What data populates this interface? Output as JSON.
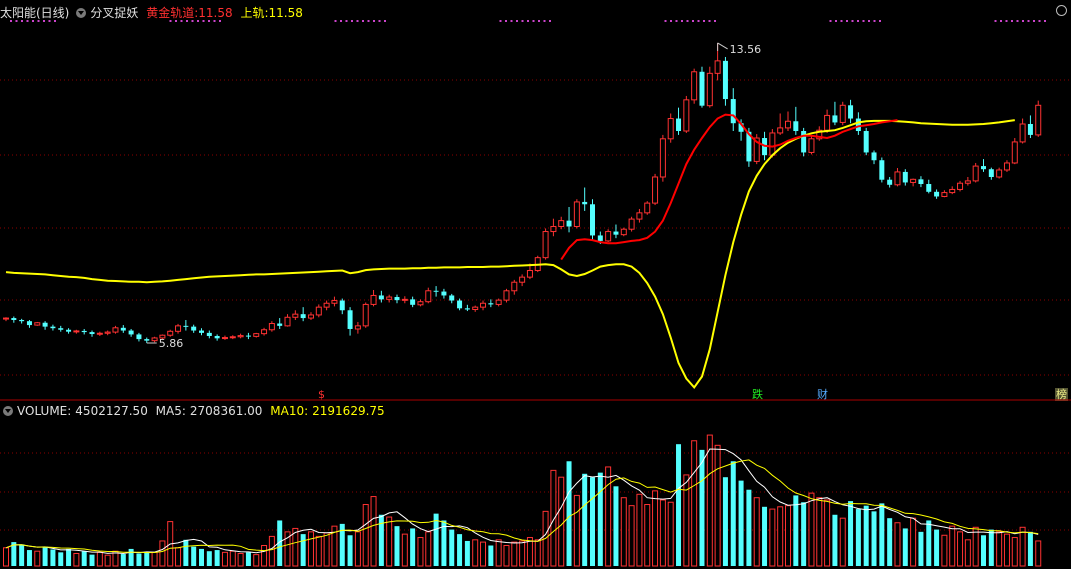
{
  "header": {
    "title": "太阳能(日线)",
    "indicator_name": "分叉捉妖",
    "line1_label": "黄金轨道:",
    "line1_value": "11.58",
    "line2_label": "上轨:",
    "line2_value": "11.58"
  },
  "volume_header": {
    "label": "VOLUME:",
    "value": "4502127.50",
    "ma5_label": "MA5:",
    "ma5_value": "2708361.00",
    "ma10_label": "MA10:",
    "ma10_value": "2191629.75"
  },
  "markers": {
    "dollar": "$",
    "die": "跌",
    "cai": "财",
    "bang": "榜"
  },
  "colors": {
    "up": "#ff3232",
    "down": "#54ffff",
    "gold_line": "#ffff00",
    "red_line": "#ff0000",
    "grid": "#8b0000"
  },
  "chart_data": {
    "type": "candlestick",
    "price_ylim": [
      4.5,
      14.2
    ],
    "high_label": "13.56",
    "low_label": "5.86",
    "high_value": 13.56,
    "low_value": 5.86,
    "candles": [
      [
        6.48,
        6.52,
        6.5,
        6.42
      ],
      [
        6.5,
        6.54,
        6.45,
        6.38
      ],
      [
        6.45,
        6.48,
        6.42,
        6.36
      ],
      [
        6.42,
        6.45,
        6.32,
        6.25
      ],
      [
        6.32,
        6.4,
        6.38,
        6.3
      ],
      [
        6.38,
        6.42,
        6.28,
        6.2
      ],
      [
        6.28,
        6.33,
        6.24,
        6.18
      ],
      [
        6.24,
        6.3,
        6.2,
        6.15
      ],
      [
        6.2,
        6.24,
        6.15,
        6.1
      ],
      [
        6.15,
        6.2,
        6.17,
        6.1
      ],
      [
        6.17,
        6.22,
        6.14,
        6.08
      ],
      [
        6.14,
        6.18,
        6.09,
        6.02
      ],
      [
        6.09,
        6.15,
        6.11,
        6.04
      ],
      [
        6.11,
        6.18,
        6.14,
        6.06
      ],
      [
        6.14,
        6.3,
        6.25,
        6.1
      ],
      [
        6.25,
        6.32,
        6.18,
        6.12
      ],
      [
        6.18,
        6.22,
        6.08,
        6.02
      ],
      [
        6.08,
        6.12,
        5.96,
        5.9
      ],
      [
        5.96,
        6.0,
        5.92,
        5.86
      ],
      [
        5.92,
        6.02,
        5.99,
        5.88
      ],
      [
        5.99,
        6.08,
        6.06,
        5.95
      ],
      [
        6.06,
        6.2,
        6.16,
        6.02
      ],
      [
        6.16,
        6.35,
        6.3,
        6.1
      ],
      [
        6.3,
        6.45,
        6.28,
        6.18
      ],
      [
        6.28,
        6.33,
        6.18,
        6.12
      ],
      [
        6.18,
        6.24,
        6.12,
        6.06
      ],
      [
        6.12,
        6.18,
        6.04,
        5.98
      ],
      [
        6.04,
        6.08,
        5.98,
        5.92
      ],
      [
        5.98,
        6.05,
        6.0,
        5.94
      ],
      [
        6.0,
        6.06,
        6.02,
        5.96
      ],
      [
        6.02,
        6.1,
        6.05,
        5.98
      ],
      [
        6.05,
        6.12,
        6.03,
        5.96
      ],
      [
        6.03,
        6.12,
        6.1,
        6.0
      ],
      [
        6.1,
        6.25,
        6.2,
        6.05
      ],
      [
        6.2,
        6.42,
        6.36,
        6.15
      ],
      [
        6.36,
        6.5,
        6.3,
        6.22
      ],
      [
        6.3,
        6.6,
        6.52,
        6.28
      ],
      [
        6.52,
        6.7,
        6.6,
        6.45
      ],
      [
        6.6,
        6.78,
        6.5,
        6.42
      ],
      [
        6.5,
        6.65,
        6.58,
        6.45
      ],
      [
        6.58,
        6.85,
        6.78,
        6.52
      ],
      [
        6.78,
        6.95,
        6.88,
        6.7
      ],
      [
        6.88,
        7.05,
        6.95,
        6.8
      ],
      [
        6.95,
        7.0,
        6.7,
        6.6
      ],
      [
        6.7,
        6.78,
        6.22,
        6.05
      ],
      [
        6.22,
        6.4,
        6.3,
        6.1
      ],
      [
        6.3,
        6.9,
        6.85,
        6.25
      ],
      [
        6.85,
        7.22,
        7.08,
        6.8
      ],
      [
        7.08,
        7.2,
        6.98,
        6.9
      ],
      [
        6.98,
        7.1,
        7.04,
        6.9
      ],
      [
        7.04,
        7.1,
        6.96,
        6.88
      ],
      [
        6.96,
        7.06,
        6.98,
        6.88
      ],
      [
        6.98,
        7.05,
        6.84,
        6.78
      ],
      [
        6.84,
        6.98,
        6.92,
        6.8
      ],
      [
        6.92,
        7.28,
        7.2,
        6.88
      ],
      [
        7.2,
        7.32,
        7.18,
        7.05
      ],
      [
        7.18,
        7.25,
        7.08,
        7.0
      ],
      [
        7.08,
        7.12,
        6.95,
        6.88
      ],
      [
        6.95,
        7.0,
        6.75,
        6.7
      ],
      [
        6.75,
        6.84,
        6.72,
        6.68
      ],
      [
        6.72,
        6.82,
        6.78,
        6.66
      ],
      [
        6.78,
        6.95,
        6.88,
        6.7
      ],
      [
        6.88,
        6.98,
        6.85,
        6.78
      ],
      [
        6.85,
        7.0,
        6.96,
        6.8
      ],
      [
        6.96,
        7.25,
        7.2,
        6.9
      ],
      [
        7.2,
        7.48,
        7.42,
        7.1
      ],
      [
        7.42,
        7.62,
        7.55,
        7.32
      ],
      [
        7.55,
        7.9,
        7.72,
        7.5
      ],
      [
        7.72,
        8.1,
        8.05,
        7.68
      ],
      [
        8.05,
        8.8,
        8.72,
        8.0
      ],
      [
        8.72,
        9.05,
        8.85,
        8.6
      ],
      [
        8.85,
        9.1,
        9.0,
        8.78
      ],
      [
        9.0,
        9.35,
        8.85,
        8.7
      ],
      [
        8.85,
        9.55,
        9.48,
        8.8
      ],
      [
        9.48,
        9.85,
        9.42,
        9.25
      ],
      [
        9.42,
        9.55,
        8.62,
        8.5
      ],
      [
        8.62,
        8.72,
        8.48,
        8.4
      ],
      [
        8.48,
        8.78,
        8.72,
        8.45
      ],
      [
        8.72,
        8.9,
        8.64,
        8.55
      ],
      [
        8.64,
        8.82,
        8.78,
        8.6
      ],
      [
        8.78,
        9.1,
        9.04,
        8.72
      ],
      [
        9.04,
        9.3,
        9.2,
        8.95
      ],
      [
        9.2,
        9.5,
        9.45,
        9.15
      ],
      [
        9.45,
        10.2,
        10.12,
        9.4
      ],
      [
        10.12,
        11.2,
        11.1,
        10.0
      ],
      [
        11.1,
        11.75,
        11.62,
        11.0
      ],
      [
        11.62,
        11.9,
        11.3,
        11.2
      ],
      [
        11.3,
        12.2,
        12.1,
        11.25
      ],
      [
        12.1,
        12.9,
        12.82,
        12.0
      ],
      [
        12.82,
        12.95,
        11.95,
        11.9
      ],
      [
        11.95,
        12.95,
        12.78,
        11.9
      ],
      [
        12.78,
        13.56,
        13.1,
        12.6
      ],
      [
        13.1,
        13.2,
        12.12,
        11.95
      ],
      [
        12.12,
        12.4,
        11.5,
        11.3
      ],
      [
        11.5,
        11.6,
        11.28,
        11.05
      ],
      [
        11.28,
        11.38,
        10.52,
        10.38
      ],
      [
        10.52,
        11.22,
        11.12,
        10.45
      ],
      [
        11.12,
        11.28,
        10.68,
        10.55
      ],
      [
        10.68,
        11.35,
        11.25,
        10.62
      ],
      [
        11.25,
        11.75,
        11.38,
        11.2
      ],
      [
        11.38,
        11.8,
        11.55,
        11.3
      ],
      [
        11.55,
        11.92,
        11.3,
        11.2
      ],
      [
        11.3,
        11.38,
        10.75,
        10.65
      ],
      [
        10.75,
        11.18,
        11.1,
        10.7
      ],
      [
        11.1,
        11.42,
        11.32,
        11.05
      ],
      [
        11.32,
        11.85,
        11.7,
        11.25
      ],
      [
        11.7,
        12.05,
        11.52,
        11.45
      ],
      [
        11.52,
        12.05,
        11.96,
        11.45
      ],
      [
        11.96,
        12.1,
        11.62,
        11.5
      ],
      [
        11.62,
        11.78,
        11.3,
        11.2
      ],
      [
        11.3,
        11.38,
        10.75,
        10.68
      ],
      [
        10.75,
        10.8,
        10.55,
        10.45
      ],
      [
        10.55,
        10.62,
        10.05,
        9.98
      ],
      [
        10.05,
        10.12,
        9.92,
        9.85
      ],
      [
        9.92,
        10.35,
        10.25,
        9.88
      ],
      [
        10.25,
        10.32,
        9.98,
        9.9
      ],
      [
        9.98,
        10.08,
        10.06,
        9.88
      ],
      [
        10.06,
        10.14,
        9.94,
        9.86
      ],
      [
        9.94,
        10.05,
        9.74,
        9.7
      ],
      [
        9.74,
        9.8,
        9.62,
        9.56
      ],
      [
        9.62,
        9.78,
        9.72,
        9.6
      ],
      [
        9.72,
        9.88,
        9.8,
        9.68
      ],
      [
        9.8,
        10.02,
        9.96,
        9.75
      ],
      [
        9.96,
        10.12,
        10.02,
        9.9
      ],
      [
        10.02,
        10.48,
        10.4,
        9.98
      ],
      [
        10.4,
        10.58,
        10.32,
        10.25
      ],
      [
        10.32,
        10.36,
        10.12,
        10.05
      ],
      [
        10.12,
        10.36,
        10.3,
        10.08
      ],
      [
        10.3,
        10.55,
        10.48,
        10.25
      ],
      [
        10.48,
        11.12,
        11.02,
        10.45
      ],
      [
        11.02,
        11.62,
        11.48,
        10.98
      ],
      [
        11.48,
        11.7,
        11.2,
        11.12
      ],
      [
        11.2,
        12.08,
        11.96,
        11.15
      ]
    ],
    "series": [
      {
        "name": "上轨",
        "x_start": 0,
        "values": [
          7.68,
          7.66,
          7.65,
          7.64,
          7.63,
          7.62,
          7.6,
          7.58,
          7.56,
          7.55,
          7.53,
          7.5,
          7.48,
          7.46,
          7.45,
          7.44,
          7.43,
          7.43,
          7.42,
          7.43,
          7.44,
          7.46,
          7.48,
          7.5,
          7.52,
          7.54,
          7.56,
          7.57,
          7.58,
          7.59,
          7.6,
          7.61,
          7.62,
          7.62,
          7.63,
          7.64,
          7.65,
          7.66,
          7.67,
          7.68,
          7.69,
          7.7,
          7.71,
          7.72,
          7.65,
          7.68,
          7.73,
          7.75,
          7.76,
          7.77,
          7.77,
          7.77,
          7.78,
          7.78,
          7.79,
          7.79,
          7.8,
          7.8,
          7.8,
          7.81,
          7.81,
          7.81,
          7.82,
          7.82,
          7.83,
          7.84,
          7.85,
          7.86,
          7.87,
          7.88,
          7.86,
          7.75,
          7.62,
          7.58,
          7.63,
          7.72,
          7.82,
          7.86,
          7.88,
          7.88,
          7.82,
          7.66,
          7.4,
          7.05,
          6.6,
          6.0,
          5.35,
          4.95,
          4.72,
          5.0,
          5.7,
          6.65,
          7.6,
          8.45,
          9.15,
          9.75,
          10.15,
          10.45,
          10.68,
          10.86,
          11.0,
          11.1,
          11.18,
          11.24,
          11.28,
          11.3,
          11.32,
          11.38,
          11.45,
          11.52,
          11.55,
          11.56,
          11.56,
          11.56,
          11.55,
          11.54,
          11.52,
          11.5,
          11.49,
          11.48,
          11.47,
          11.46,
          11.46,
          11.46,
          11.47,
          11.48,
          11.5,
          11.52,
          11.55,
          11.58
        ]
      },
      {
        "name": "黄金轨道",
        "x_start": 71,
        "values": [
          8.0,
          8.3,
          8.5,
          8.52,
          8.5,
          8.45,
          8.42,
          8.42,
          8.45,
          8.48,
          8.5,
          8.56,
          8.72,
          9.0,
          9.45,
          9.95,
          10.45,
          10.82,
          11.12,
          11.4,
          11.62,
          11.72,
          11.7,
          11.48,
          11.22,
          11.02,
          10.92,
          10.9,
          10.95,
          11.05,
          11.12,
          11.18,
          11.18,
          11.15,
          11.12,
          11.18,
          11.28,
          11.35,
          11.42,
          11.45,
          11.48,
          11.52,
          11.55,
          11.58
        ]
      }
    ],
    "volume": {
      "ylim": [
        0,
        13000000
      ],
      "values": [
        1600000,
        2100000,
        1900000,
        1400000,
        1300000,
        1700000,
        1450000,
        1200000,
        1500000,
        1100000,
        1300000,
        1000000,
        1200000,
        950000,
        1300000,
        1050000,
        1500000,
        1100000,
        1250000,
        1200000,
        2200000,
        3900000,
        1600000,
        2300000,
        1700000,
        1500000,
        1300000,
        1400000,
        1200000,
        1300000,
        1100000,
        1200000,
        1000000,
        1800000,
        2600000,
        4000000,
        3000000,
        3300000,
        2800000,
        3000000,
        2600000,
        2900000,
        3500000,
        3700000,
        2700000,
        3000000,
        5400000,
        6100000,
        4500000,
        4300000,
        3500000,
        2800000,
        3300000,
        2500000,
        3000000,
        4600000,
        4000000,
        3200000,
        2800000,
        2200000,
        2300000,
        2100000,
        1800000,
        2300000,
        1800000,
        2100000,
        2200000,
        2500000,
        2300000,
        4800000,
        8400000,
        7800000,
        9200000,
        6200000,
        8100000,
        7800000,
        8200000,
        8700000,
        7000000,
        6000000,
        5300000,
        6300000,
        5400000,
        6600000,
        5800000,
        5600000,
        10700000,
        8000000,
        11000000,
        10200000,
        11500000,
        10600000,
        7800000,
        9200000,
        7500000,
        6700000,
        6000000,
        5200000,
        5000000,
        5200000,
        5300000,
        6200000,
        5600000,
        6400000,
        6000000,
        5800000,
        4500000,
        4200000,
        5700000,
        5000000,
        5300000,
        4800000,
        5500000,
        4200000,
        3800000,
        3300000,
        4200000,
        3000000,
        4000000,
        3200000,
        2700000,
        3500000,
        3000000,
        2300000,
        3400000,
        2700000,
        3200000,
        3000000,
        2800000,
        2500000,
        3400000,
        3000000,
        2200000,
        3100000,
        2900000,
        2600000,
        3800000,
        5600000,
        4500000,
        8000000
      ]
    }
  }
}
